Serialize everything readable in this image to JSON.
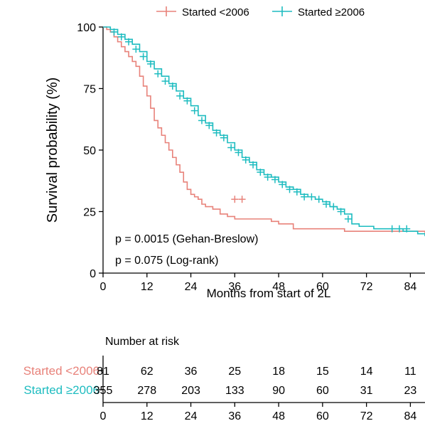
{
  "chart_data": [
    {
      "type": "line",
      "subtype": "kaplan-meier",
      "title": "",
      "xlabel": "Months from start of 2L",
      "ylabel": "Survival probability (%)",
      "xlim": [
        0,
        88
      ],
      "ylim": [
        0,
        100
      ],
      "x_ticks": [
        0,
        12,
        24,
        36,
        48,
        60,
        72,
        84
      ],
      "y_ticks": [
        0,
        25,
        50,
        75,
        100
      ],
      "legend": {
        "position": "top",
        "entries": [
          "Started <2006",
          "Started ≥2006"
        ]
      },
      "annotations": [
        "p = 0.0015 (Gehan-Breslow)",
        "p = 0.075 (Log-rank)"
      ],
      "series": [
        {
          "name": "Started <2006",
          "color": "#E8827A",
          "x": [
            0,
            1,
            2,
            3,
            4,
            5,
            6,
            7,
            8,
            9,
            10,
            11,
            12,
            13,
            14,
            15,
            16,
            17,
            18,
            19,
            20,
            21,
            22,
            23,
            24,
            25,
            26,
            27,
            28,
            30,
            32,
            34,
            36,
            38,
            40,
            42,
            44,
            46,
            48,
            52,
            60,
            66,
            88
          ],
          "y": [
            100,
            99,
            98,
            96,
            94,
            92,
            90,
            88,
            86,
            84,
            80,
            76,
            72,
            67,
            62,
            59,
            56,
            53,
            50,
            47,
            44,
            41,
            37,
            34,
            32,
            31,
            30,
            28,
            27,
            26,
            24,
            23,
            22,
            22,
            22,
            22,
            22,
            21,
            20,
            18,
            18,
            17,
            16
          ],
          "censored_x": [
            36,
            38
          ],
          "censored_y": [
            30,
            30
          ]
        },
        {
          "name": "Started ≥2006",
          "color": "#1EBCC0",
          "x": [
            0,
            2,
            4,
            6,
            8,
            10,
            12,
            14,
            16,
            18,
            20,
            22,
            24,
            26,
            28,
            30,
            32,
            34,
            36,
            38,
            40,
            42,
            44,
            46,
            48,
            50,
            52,
            54,
            56,
            58,
            60,
            62,
            64,
            66,
            68,
            70,
            72,
            74,
            76,
            78,
            80,
            82,
            84,
            86,
            88
          ],
          "y": [
            100,
            99,
            97,
            95,
            93,
            90,
            86,
            83,
            80,
            77,
            74,
            71,
            68,
            64,
            61,
            58,
            56,
            53,
            50,
            47,
            45,
            42,
            40,
            39,
            37,
            35,
            34,
            32,
            31,
            30,
            29,
            27,
            26,
            24,
            20,
            19,
            19,
            18,
            18,
            18,
            18,
            17,
            17,
            16,
            15
          ],
          "censored_x": [
            3,
            5,
            7,
            9,
            11,
            13,
            15,
            17,
            19,
            21,
            23,
            25,
            27,
            29,
            31,
            33,
            35,
            37,
            39,
            41,
            43,
            45,
            47,
            49,
            51,
            53,
            55,
            57,
            59,
            61,
            63,
            65,
            67,
            79,
            81,
            83
          ],
          "censored_y": [
            98,
            96,
            94,
            91,
            88,
            85,
            81,
            78,
            76,
            72,
            70,
            66,
            62,
            60,
            57,
            55,
            51,
            49,
            46,
            44,
            41,
            39,
            38,
            36,
            34,
            33,
            31,
            31,
            30,
            28,
            27,
            25,
            22,
            18,
            18,
            18
          ]
        }
      ]
    },
    {
      "type": "table",
      "title": "Number at risk",
      "columns": [
        0,
        12,
        24,
        36,
        48,
        60,
        72,
        84
      ],
      "rows": [
        {
          "label": "Started <2006",
          "color": "#E8827A",
          "values": [
            81,
            62,
            36,
            25,
            18,
            15,
            14,
            11
          ]
        },
        {
          "label": "Started ≥2006",
          "color": "#1EBCC0",
          "values": [
            355,
            278,
            203,
            133,
            90,
            60,
            31,
            23
          ]
        }
      ]
    }
  ]
}
